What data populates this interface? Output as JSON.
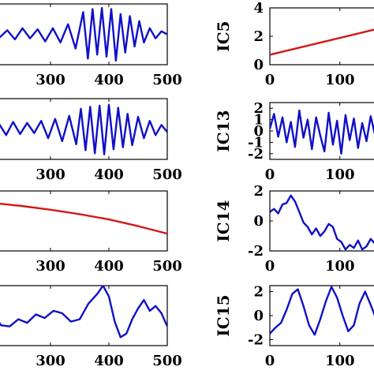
{
  "chart_data": [
    {
      "type": "line",
      "panel": "left-row-1",
      "xlabel": "",
      "ylabel": "",
      "xlim": [
        200,
        500
      ],
      "ylim": [
        -3,
        3
      ],
      "xticks": [
        300,
        400,
        500
      ],
      "color": "#1010c8",
      "series": [
        {
          "x": [
            200,
            213,
            226,
            239,
            252,
            265,
            278,
            291,
            304,
            317,
            330,
            343,
            356,
            364,
            372,
            380,
            388,
            396,
            404,
            412,
            420,
            428,
            436,
            444,
            452,
            460,
            470,
            480,
            490,
            500
          ],
          "y": [
            0,
            -0.3,
            0.4,
            -0.5,
            0.6,
            -0.4,
            0.5,
            -0.7,
            0.6,
            -0.8,
            1.0,
            -1.4,
            2.2,
            -2.4,
            2.5,
            -2.0,
            2.6,
            -2.2,
            2.5,
            -2.6,
            2.0,
            -1.8,
            1.8,
            -1.2,
            1.3,
            -0.8,
            0.6,
            -0.4,
            0.3,
            0.0
          ]
        }
      ]
    },
    {
      "type": "line",
      "panel": "left-row-2",
      "xlabel": "",
      "ylabel": "",
      "xlim": [
        200,
        500
      ],
      "ylim": [
        -3,
        3
      ],
      "xticks": [
        300,
        400,
        500
      ],
      "color": "#1010c8",
      "series": [
        {
          "x": [
            200,
            212,
            224,
            236,
            248,
            260,
            272,
            284,
            296,
            308,
            320,
            332,
            344,
            352,
            360,
            368,
            376,
            384,
            392,
            400,
            408,
            416,
            424,
            432,
            440,
            450,
            460,
            470,
            480,
            490,
            500
          ],
          "y": [
            -0.2,
            0.5,
            -0.6,
            0.7,
            -0.5,
            0.6,
            -0.4,
            0.8,
            -0.9,
            1.0,
            -1.2,
            1.3,
            -1.5,
            2.0,
            -2.1,
            2.2,
            -2.4,
            2.3,
            -2.5,
            2.4,
            -2.0,
            2.1,
            -1.8,
            1.5,
            -1.6,
            1.2,
            -0.9,
            0.8,
            -0.6,
            0.4,
            -0.3
          ]
        }
      ]
    },
    {
      "type": "line",
      "panel": "left-row-3",
      "xlabel": "",
      "ylabel": "",
      "xlim": [
        200,
        500
      ],
      "ylim": [
        -2,
        2
      ],
      "xticks": [
        300,
        400,
        500
      ],
      "color": "#d41818",
      "series": [
        {
          "x": [
            200,
            250,
            300,
            350,
            400,
            450,
            500
          ],
          "y": [
            1.2,
            1.0,
            0.75,
            0.45,
            0.1,
            -0.35,
            -0.85
          ]
        }
      ]
    },
    {
      "type": "line",
      "panel": "left-row-4",
      "xlabel": "",
      "ylabel": "",
      "xlim": [
        200,
        500
      ],
      "ylim": [
        -2.5,
        2.5
      ],
      "xticks": [
        300,
        400,
        500
      ],
      "color": "#1010c8",
      "series": [
        {
          "x": [
            200,
            215,
            230,
            245,
            260,
            275,
            290,
            305,
            320,
            335,
            350,
            365,
            380,
            390,
            400,
            410,
            420,
            430,
            440,
            450,
            460,
            470,
            480,
            490,
            500
          ],
          "y": [
            0.5,
            -0.8,
            -0.9,
            -0.3,
            -0.6,
            0.1,
            -0.2,
            0.4,
            0.2,
            -0.5,
            -0.3,
            1.0,
            1.8,
            2.5,
            1.6,
            -0.5,
            -1.8,
            -1.5,
            -0.3,
            0.6,
            1.3,
            0.4,
            0.8,
            0.2,
            -0.9
          ]
        }
      ]
    },
    {
      "type": "line",
      "panel": "right-row-1",
      "xlabel": "",
      "ylabel": "IC5",
      "xlim": [
        0,
        160
      ],
      "ylim": [
        0,
        4
      ],
      "xticks": [
        0,
        100
      ],
      "yticks": [
        0,
        2,
        4
      ],
      "color": "#d41818",
      "series": [
        {
          "x": [
            0,
            160
          ],
          "y": [
            0.7,
            2.6
          ]
        }
      ]
    },
    {
      "type": "line",
      "panel": "right-row-2",
      "xlabel": "",
      "ylabel": "IC13",
      "xlim": [
        0,
        160
      ],
      "ylim": [
        -2.5,
        2.5
      ],
      "xticks": [
        0,
        100
      ],
      "yticks": [
        -2,
        -1,
        0,
        1,
        2
      ],
      "color": "#1010c8",
      "series": [
        {
          "x": [
            0,
            6,
            12,
            18,
            24,
            30,
            36,
            42,
            48,
            54,
            60,
            66,
            72,
            78,
            84,
            90,
            96,
            102,
            108,
            114,
            120,
            126,
            132,
            138,
            144,
            150,
            156,
            160
          ],
          "y": [
            0.2,
            1.5,
            -0.5,
            1.2,
            -1.0,
            0.8,
            -1.4,
            1.8,
            -0.6,
            1.0,
            -1.6,
            1.2,
            -0.4,
            -1.8,
            1.6,
            -1.2,
            0.9,
            -2.0,
            1.4,
            -0.8,
            1.1,
            -1.5,
            0.7,
            -0.9,
            1.3,
            -0.3,
            0.5,
            0.0
          ]
        }
      ]
    },
    {
      "type": "line",
      "panel": "right-row-3",
      "xlabel": "",
      "ylabel": "IC14",
      "xlim": [
        0,
        160
      ],
      "ylim": [
        -2,
        2
      ],
      "xticks": [
        0,
        100
      ],
      "yticks": [
        -2,
        0,
        2
      ],
      "color": "#1010c8",
      "series": [
        {
          "x": [
            0,
            6,
            12,
            18,
            24,
            30,
            36,
            42,
            48,
            54,
            60,
            66,
            72,
            78,
            84,
            90,
            96,
            102,
            108,
            114,
            120,
            126,
            132,
            138,
            144,
            150,
            156,
            160
          ],
          "y": [
            0.6,
            0.8,
            0.5,
            1.1,
            1.2,
            1.7,
            1.3,
            0.6,
            -0.1,
            -0.4,
            -0.9,
            -0.5,
            -1.0,
            -0.7,
            -0.2,
            -0.4,
            -1.2,
            -1.4,
            -1.9,
            -1.6,
            -1.8,
            -1.3,
            -1.9,
            -1.7,
            -1.2,
            -1.5,
            -1.8,
            -1.6
          ]
        }
      ]
    },
    {
      "type": "line",
      "panel": "right-row-4",
      "xlabel": "",
      "ylabel": "IC15",
      "xlim": [
        0,
        160
      ],
      "ylim": [
        -2.5,
        2.5
      ],
      "xticks": [
        0,
        100
      ],
      "yticks": [
        -2,
        0,
        2
      ],
      "color": "#1010c8",
      "series": [
        {
          "x": [
            0,
            8,
            16,
            24,
            32,
            40,
            48,
            56,
            64,
            72,
            80,
            88,
            96,
            104,
            112,
            120,
            128,
            136,
            144,
            152,
            160
          ],
          "y": [
            -1.5,
            -1.0,
            -0.6,
            0.5,
            1.8,
            2.2,
            0.8,
            -0.8,
            -1.6,
            -0.3,
            1.2,
            2.4,
            1.5,
            0.0,
            -1.3,
            -0.8,
            1.0,
            2.0,
            0.9,
            -0.3,
            0.4
          ]
        }
      ]
    }
  ]
}
